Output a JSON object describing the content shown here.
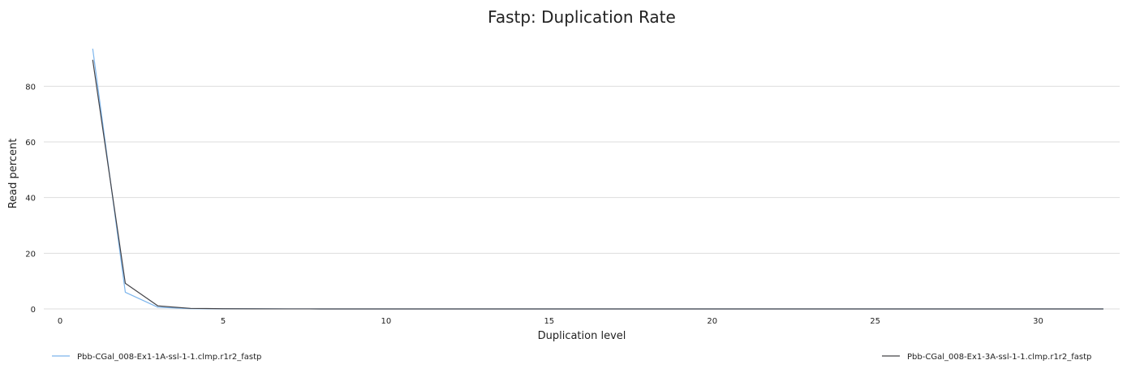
{
  "chart_data": {
    "type": "line",
    "title": "Fastp: Duplication Rate",
    "xlabel": "Duplication level",
    "ylabel": "Read percent",
    "xlim": [
      -0.5,
      32.5
    ],
    "ylim": [
      0,
      97
    ],
    "xticks": [
      0,
      5,
      10,
      15,
      20,
      25,
      30
    ],
    "yticks": [
      0,
      20,
      40,
      60,
      80
    ],
    "grid": "horizontal",
    "legend_position": "bottom",
    "series": [
      {
        "name": "Pbb-CGal_008-Ex1-1A-ssl-1-1.clmp.r1r2_fastp",
        "color": "#7cb5ec",
        "x": [
          1,
          2,
          3,
          4,
          5,
          6,
          7,
          8,
          9,
          10,
          11,
          12,
          13,
          14,
          15,
          16,
          17,
          18,
          19,
          20,
          21,
          22,
          23,
          24,
          25,
          26,
          27,
          28,
          29,
          30,
          31,
          32
        ],
        "y": [
          93.5,
          6.0,
          0.6,
          0.1,
          0.05,
          0.03,
          0.02,
          0.01,
          0.01,
          0.01,
          0,
          0,
          0,
          0,
          0,
          0,
          0,
          0,
          0,
          0,
          0,
          0,
          0,
          0,
          0,
          0,
          0,
          0,
          0,
          0,
          0,
          0
        ]
      },
      {
        "name": "Pbb-CGal_008-Ex1-3A-ssl-1-1.clmp.r1r2_fastp",
        "color": "#434348",
        "x": [
          1,
          2,
          3,
          4,
          5,
          6,
          7,
          8,
          9,
          10,
          11,
          12,
          13,
          14,
          15,
          16,
          17,
          18,
          19,
          20,
          21,
          22,
          23,
          24,
          25,
          26,
          27,
          28,
          29,
          30,
          31,
          32
        ],
        "y": [
          89.5,
          9.2,
          1.1,
          0.2,
          0.08,
          0.04,
          0.02,
          0.01,
          0.01,
          0.01,
          0,
          0,
          0,
          0,
          0,
          0,
          0,
          0,
          0,
          0,
          0,
          0,
          0,
          0,
          0,
          0,
          0,
          0,
          0,
          0,
          0,
          0
        ]
      }
    ]
  }
}
